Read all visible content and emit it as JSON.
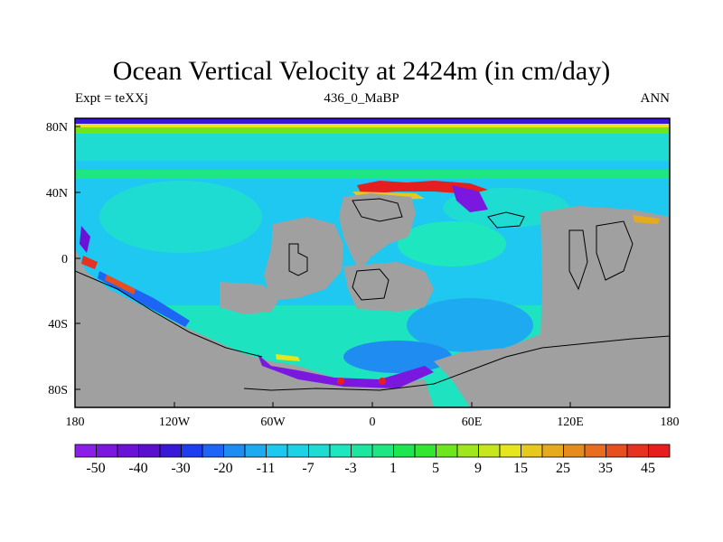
{
  "title": "Ocean Vertical Velocity at 2424m (in cm/day)",
  "subtitle_left": "Expt = teXXj",
  "subtitle_center": "436_0_MaBP",
  "subtitle_right": "ANN",
  "map": {
    "lon_ticks": [
      "180",
      "120W",
      "60W",
      "0",
      "60E",
      "120E",
      "180"
    ],
    "lat_ticks": [
      "80N",
      "40N",
      "0",
      "40S",
      "80S"
    ],
    "land_color": "#a0a0a0",
    "ocean_background_color": "#1ee3c0"
  },
  "colorbar": {
    "labels": [
      "-50",
      "-40",
      "-30",
      "-20",
      "-11",
      "-7",
      "-3",
      "1",
      "5",
      "9",
      "15",
      "25",
      "35",
      "45"
    ],
    "colors": [
      "#8c1eea",
      "#7a18e0",
      "#6a12d6",
      "#5a10cc",
      "#3a18d8",
      "#1e3cf0",
      "#1e64f5",
      "#1e8cf0",
      "#1eaaf0",
      "#1ec8f0",
      "#1ed2e6",
      "#1edcd2",
      "#1ee6be",
      "#1ee6a0",
      "#1ee682",
      "#1ee650",
      "#32e632",
      "#6ee61e",
      "#a0e61e",
      "#c8e61e",
      "#e6e61e",
      "#e6c81e",
      "#e6aa1e",
      "#e68c1e",
      "#e66e1e",
      "#e6501e",
      "#e6321e",
      "#e61e1e"
    ]
  }
}
